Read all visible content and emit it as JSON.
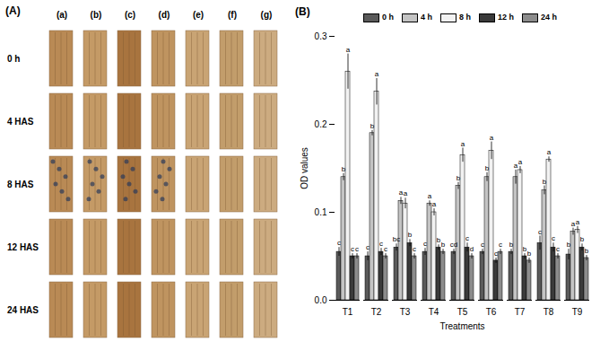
{
  "panel_a": {
    "label": "(A)",
    "columns": [
      "(a)",
      "(b)",
      "(c)",
      "(d)",
      "(e)",
      "(f)",
      "(g)"
    ],
    "rows": [
      "0 h",
      "4 HAS",
      "8 HAS",
      "12 HAS",
      "24 HAS"
    ]
  },
  "chart_data": {
    "type": "bar",
    "title": "(B)",
    "x_label": "Treatments",
    "y_label": "OD values",
    "categories": [
      "T1",
      "T2",
      "T3",
      "T4",
      "T5",
      "T6",
      "T7",
      "T8",
      "T9"
    ],
    "series": [
      {
        "name": "0 h",
        "color": "#5a5a5a",
        "values": [
          0.055,
          0.05,
          0.06,
          0.055,
          0.055,
          0.055,
          0.055,
          0.065,
          0.052
        ],
        "errors": [
          0.005,
          0.005,
          0.004,
          0.004,
          0.003,
          0.003,
          0.003,
          0.008,
          0.006
        ],
        "letters": [
          "c",
          "c",
          "bc",
          "c",
          "cd",
          "c",
          "b",
          "c",
          "b"
        ]
      },
      {
        "name": "4 h",
        "color": "#c4c4c4",
        "values": [
          0.14,
          0.19,
          0.113,
          0.11,
          0.13,
          0.14,
          0.14,
          0.125,
          0.078
        ],
        "errors": [
          0.004,
          0.003,
          0.004,
          0.003,
          0.004,
          0.005,
          0.008,
          0.005,
          0.004
        ],
        "letters": [
          "b",
          "b",
          "a",
          "a",
          "b",
          "b",
          "a",
          "b",
          "a"
        ]
      },
      {
        "name": "8 h",
        "color": "#f2f2f2",
        "values": [
          0.26,
          0.237,
          0.11,
          0.1,
          0.165,
          0.17,
          0.148,
          0.16,
          0.08
        ],
        "errors": [
          0.02,
          0.015,
          0.006,
          0.004,
          0.008,
          0.01,
          0.004,
          0.003,
          0.004
        ],
        "letters": [
          "a",
          "a",
          "a",
          "a",
          "a",
          "a",
          "a",
          "a",
          "a"
        ]
      },
      {
        "name": "12 h",
        "color": "#3a3a3a",
        "values": [
          0.05,
          0.055,
          0.065,
          0.06,
          0.06,
          0.045,
          0.05,
          0.06,
          0.06
        ],
        "errors": [
          0.003,
          0.004,
          0.004,
          0.003,
          0.005,
          0.003,
          0.003,
          0.005,
          0.004
        ],
        "letters": [
          "c",
          "c",
          "b",
          "b",
          "c",
          "c",
          "b",
          "c",
          "b"
        ]
      },
      {
        "name": "24 h",
        "color": "#8c8c8c",
        "values": [
          0.05,
          0.05,
          0.05,
          0.055,
          0.05,
          0.055,
          0.045,
          0.05,
          0.048
        ],
        "errors": [
          0.003,
          0.003,
          0.003,
          0.003,
          0.003,
          0.003,
          0.003,
          0.003,
          0.003
        ],
        "letters": [
          "c",
          "c",
          "c",
          "b",
          "d",
          "c",
          "b",
          "c",
          "b"
        ]
      }
    ],
    "ylim": [
      0,
      0.3
    ],
    "yticks": [
      {
        "value": 0,
        "label": "0.0"
      },
      {
        "value": 0.1,
        "label": "0.1"
      },
      {
        "value": 0.2,
        "label": "0.2"
      },
      {
        "value": 0.3,
        "label": "0.3"
      }
    ],
    "legend": "top"
  }
}
